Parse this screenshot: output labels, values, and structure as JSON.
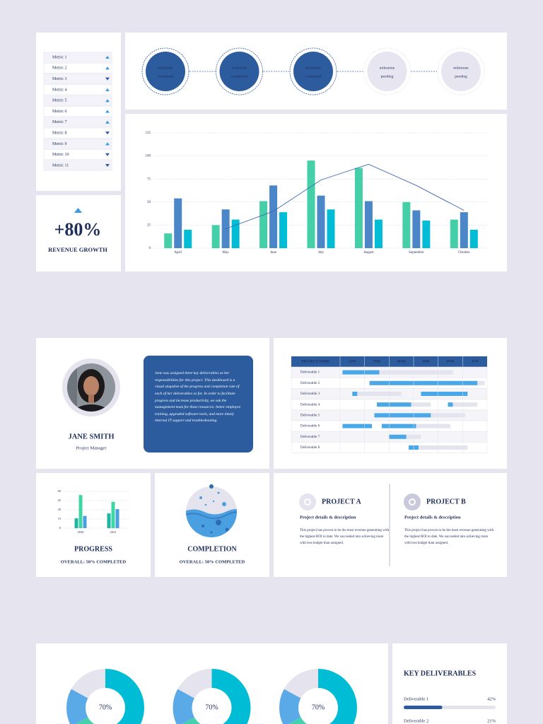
{
  "metrics": [
    {
      "label": "Metric 1",
      "trend": "up"
    },
    {
      "label": "Metric 2",
      "trend": "up"
    },
    {
      "label": "Metric 3",
      "trend": "down"
    },
    {
      "label": "Metric 4",
      "trend": "up"
    },
    {
      "label": "Metric 5",
      "trend": "up"
    },
    {
      "label": "Metric 6",
      "trend": "up"
    },
    {
      "label": "Metric 7",
      "trend": "up"
    },
    {
      "label": "Metric 8",
      "trend": "down"
    },
    {
      "label": "Metric 9",
      "trend": "up"
    },
    {
      "label": "Metric 10",
      "trend": "down"
    },
    {
      "label": "Metric 11",
      "trend": "down"
    }
  ],
  "revenue": {
    "value": "+80%",
    "label": "REVENUE GROWTH"
  },
  "milestones": [
    {
      "text": "milestone",
      "status": "completed",
      "color": "#2d5c9e",
      "text_color": "#ffffff"
    },
    {
      "text": "milestone",
      "status": "completed",
      "color": "#2d5c9e",
      "text_color": "#ffffff"
    },
    {
      "text": "milestone",
      "status": "completed",
      "color": "#2d5c9e",
      "text_color": "#ffffff"
    },
    {
      "text": "milestone",
      "status": "pending",
      "color": "#e6e5f0",
      "text_color": "#555a70"
    },
    {
      "text": "milestone",
      "status": "pending",
      "color": "#e6e5f0",
      "text_color": "#555a70"
    }
  ],
  "chart_data": [
    {
      "type": "bar",
      "categories": [
        "April",
        "May",
        "June",
        "July",
        "August",
        "September",
        "October"
      ],
      "series": [
        {
          "color": "#45cfa9",
          "values": [
            16,
            25,
            51,
            95,
            87,
            50,
            31
          ]
        },
        {
          "color": "#4a86c8",
          "values": [
            54,
            42,
            68,
            57,
            51,
            41,
            39
          ]
        },
        {
          "color": "#00bcd4",
          "values": [
            20,
            31,
            39,
            42,
            31,
            30,
            20
          ]
        },
        {
          "type": "line",
          "color": "#3d67b0",
          "values": [
            null,
            21,
            40,
            74,
            91,
            68,
            41
          ]
        }
      ],
      "ylim": [
        0,
        125
      ],
      "yticks": [
        0,
        25,
        50,
        75,
        100,
        125
      ],
      "grid": true
    },
    {
      "type": "bar",
      "title": "PROGRESS",
      "subtitle": "OVERALL: 50% COMPLETED",
      "categories": [
        "2020",
        "2021"
      ],
      "series": [
        {
          "color": "#1fb5a3",
          "values": [
            16,
            24
          ]
        },
        {
          "color": "#3fd6a6",
          "values": [
            54,
            43
          ]
        },
        {
          "color": "#4a9fe0",
          "values": [
            20,
            31
          ]
        }
      ],
      "ylim": [
        0,
        60
      ],
      "yticks": [
        0,
        15,
        30,
        45,
        60
      ],
      "grid": true
    },
    {
      "type": "donut",
      "center_label": "70%",
      "values": [
        50,
        17,
        16,
        17
      ],
      "colors": [
        "#00bcd4",
        "#45d1ae",
        "#5aaae8",
        "#e4e3ee"
      ]
    },
    {
      "type": "donut",
      "center_label": "70%",
      "values": [
        50,
        17,
        16,
        17
      ],
      "colors": [
        "#00bcd4",
        "#45d1ae",
        "#5aaae8",
        "#e4e3ee"
      ]
    },
    {
      "type": "donut",
      "center_label": "70%",
      "values": [
        50,
        17,
        16,
        17
      ],
      "colors": [
        "#00bcd4",
        "#45d1ae",
        "#5aaae8",
        "#e4e3ee"
      ]
    }
  ],
  "profile": {
    "name": "JANE SMITH",
    "role": "Project Manager",
    "bio": "Jane was assigned three key deliverables as her responsibilities for this project. This dashboard is a visual snapshot of the progress and completion rate of each of her deliverables so far. In order to facilitate progress and increase productivity, we ask the management team for these resources: better employee training, upgraded software tools, and more timely internal IT support and troubleshooting."
  },
  "gantt": {
    "header": [
      "PROJECT NAME",
      "JAN",
      "FEB",
      "MAR",
      "APR",
      "MAY",
      "JUN"
    ],
    "xlim": [
      0,
      6
    ],
    "colors": {
      "done": "#4aa8e8",
      "planned": "#e4e4ee"
    },
    "rows": [
      {
        "name": "Deliverable 1",
        "segments": [
          {
            "start": 0.1,
            "end": 4.6,
            "status": "planned"
          },
          {
            "start": 0.1,
            "end": 1.6,
            "status": "done"
          }
        ]
      },
      {
        "name": "Deliverable 2",
        "segments": [
          {
            "start": 1.2,
            "end": 5.9,
            "status": "planned"
          },
          {
            "start": 1.2,
            "end": 5.6,
            "status": "done"
          }
        ]
      },
      {
        "name": "Deliverable 3",
        "segments": [
          {
            "start": 0.5,
            "end": 2.5,
            "status": "planned"
          },
          {
            "start": 0.5,
            "end": 0.7,
            "status": "done"
          },
          {
            "start": 3.3,
            "end": 5.2,
            "status": "done"
          }
        ]
      },
      {
        "name": "Deliverable 4",
        "segments": [
          {
            "start": 1.5,
            "end": 3.7,
            "status": "planned"
          },
          {
            "start": 1.5,
            "end": 2.9,
            "status": "done"
          },
          {
            "start": 4.4,
            "end": 5.6,
            "status": "planned"
          },
          {
            "start": 4.4,
            "end": 4.6,
            "status": "done"
          }
        ]
      },
      {
        "name": "Deliverable 5",
        "segments": [
          {
            "start": 1.4,
            "end": 5.1,
            "status": "planned"
          },
          {
            "start": 1.4,
            "end": 3.7,
            "status": "done"
          }
        ]
      },
      {
        "name": "Deliverable 6",
        "segments": [
          {
            "start": 0.1,
            "end": 1.3,
            "status": "done"
          },
          {
            "start": 1.7,
            "end": 4.5,
            "status": "planned"
          },
          {
            "start": 1.7,
            "end": 3.1,
            "status": "done"
          }
        ]
      },
      {
        "name": "Deliverable 7",
        "segments": [
          {
            "start": 2.0,
            "end": 3.3,
            "status": "planned"
          },
          {
            "start": 2.0,
            "end": 2.7,
            "status": "done"
          }
        ]
      },
      {
        "name": "Deliverable 8",
        "segments": [
          {
            "start": 2.8,
            "end": 5.2,
            "status": "planned"
          },
          {
            "start": 2.8,
            "end": 3.2,
            "status": "done"
          }
        ]
      }
    ]
  },
  "completion": {
    "title": "COMPLETION",
    "subtitle": "OVERALL: 50% COMPLETED"
  },
  "projects": [
    {
      "title": "PROJECT A",
      "subtitle": "Project details & description",
      "text": "This project has proven to be the most revenue generating with the highest ROI to date. We succeeded into achieving more with less budget than assigned."
    },
    {
      "title": "PROJECT B",
      "subtitle": "Project details & description",
      "text": "This project has proven to be the most revenue generating with the highest ROI to date. We succeeded into achieving more with less budget than assigned."
    }
  ],
  "key_deliverables": {
    "title": "KEY DELIVERABLES",
    "xlim": [
      0,
      100
    ],
    "color": "#2d5c9e",
    "items": [
      {
        "name": "Deliverable 1",
        "value": 42,
        "value_label": "42%"
      },
      {
        "name": "Deliverable 2",
        "value": 21,
        "value_label": "21%"
      }
    ]
  }
}
